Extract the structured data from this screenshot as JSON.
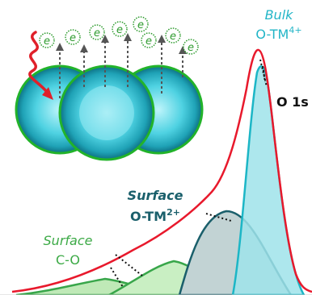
{
  "labels": {
    "bulk_title": "Bulk",
    "bulk_species_base": "O-TM",
    "bulk_species_sup": "4+",
    "o1s": "O 1s",
    "surface_tm_title": "Surface",
    "surface_tm_species_base": "O-TM",
    "surface_tm_species_sup": "2+",
    "surface_co_title": "Surface",
    "surface_co_species": "C-O"
  },
  "electron_symbol": "e",
  "colors": {
    "envelope": "#e8192c",
    "bulk_peak_fill": "#9fe3ea",
    "bulk_peak_stroke": "#1cb6c6",
    "surface_tm_fill": "#c2d3d4",
    "surface_tm_stroke": "#1a5f6b",
    "surface_co_fill": "#bfe9b7",
    "surface_co_stroke": "#38a64a",
    "sphere_outline": "#22b32a",
    "photon": "#e0202a",
    "electron_ring": "#2e9b2e",
    "label_teal_light": "#21b5c7",
    "label_teal_dark": "#1a5f6b",
    "label_green": "#3caa46",
    "label_black": "#111111"
  }
}
